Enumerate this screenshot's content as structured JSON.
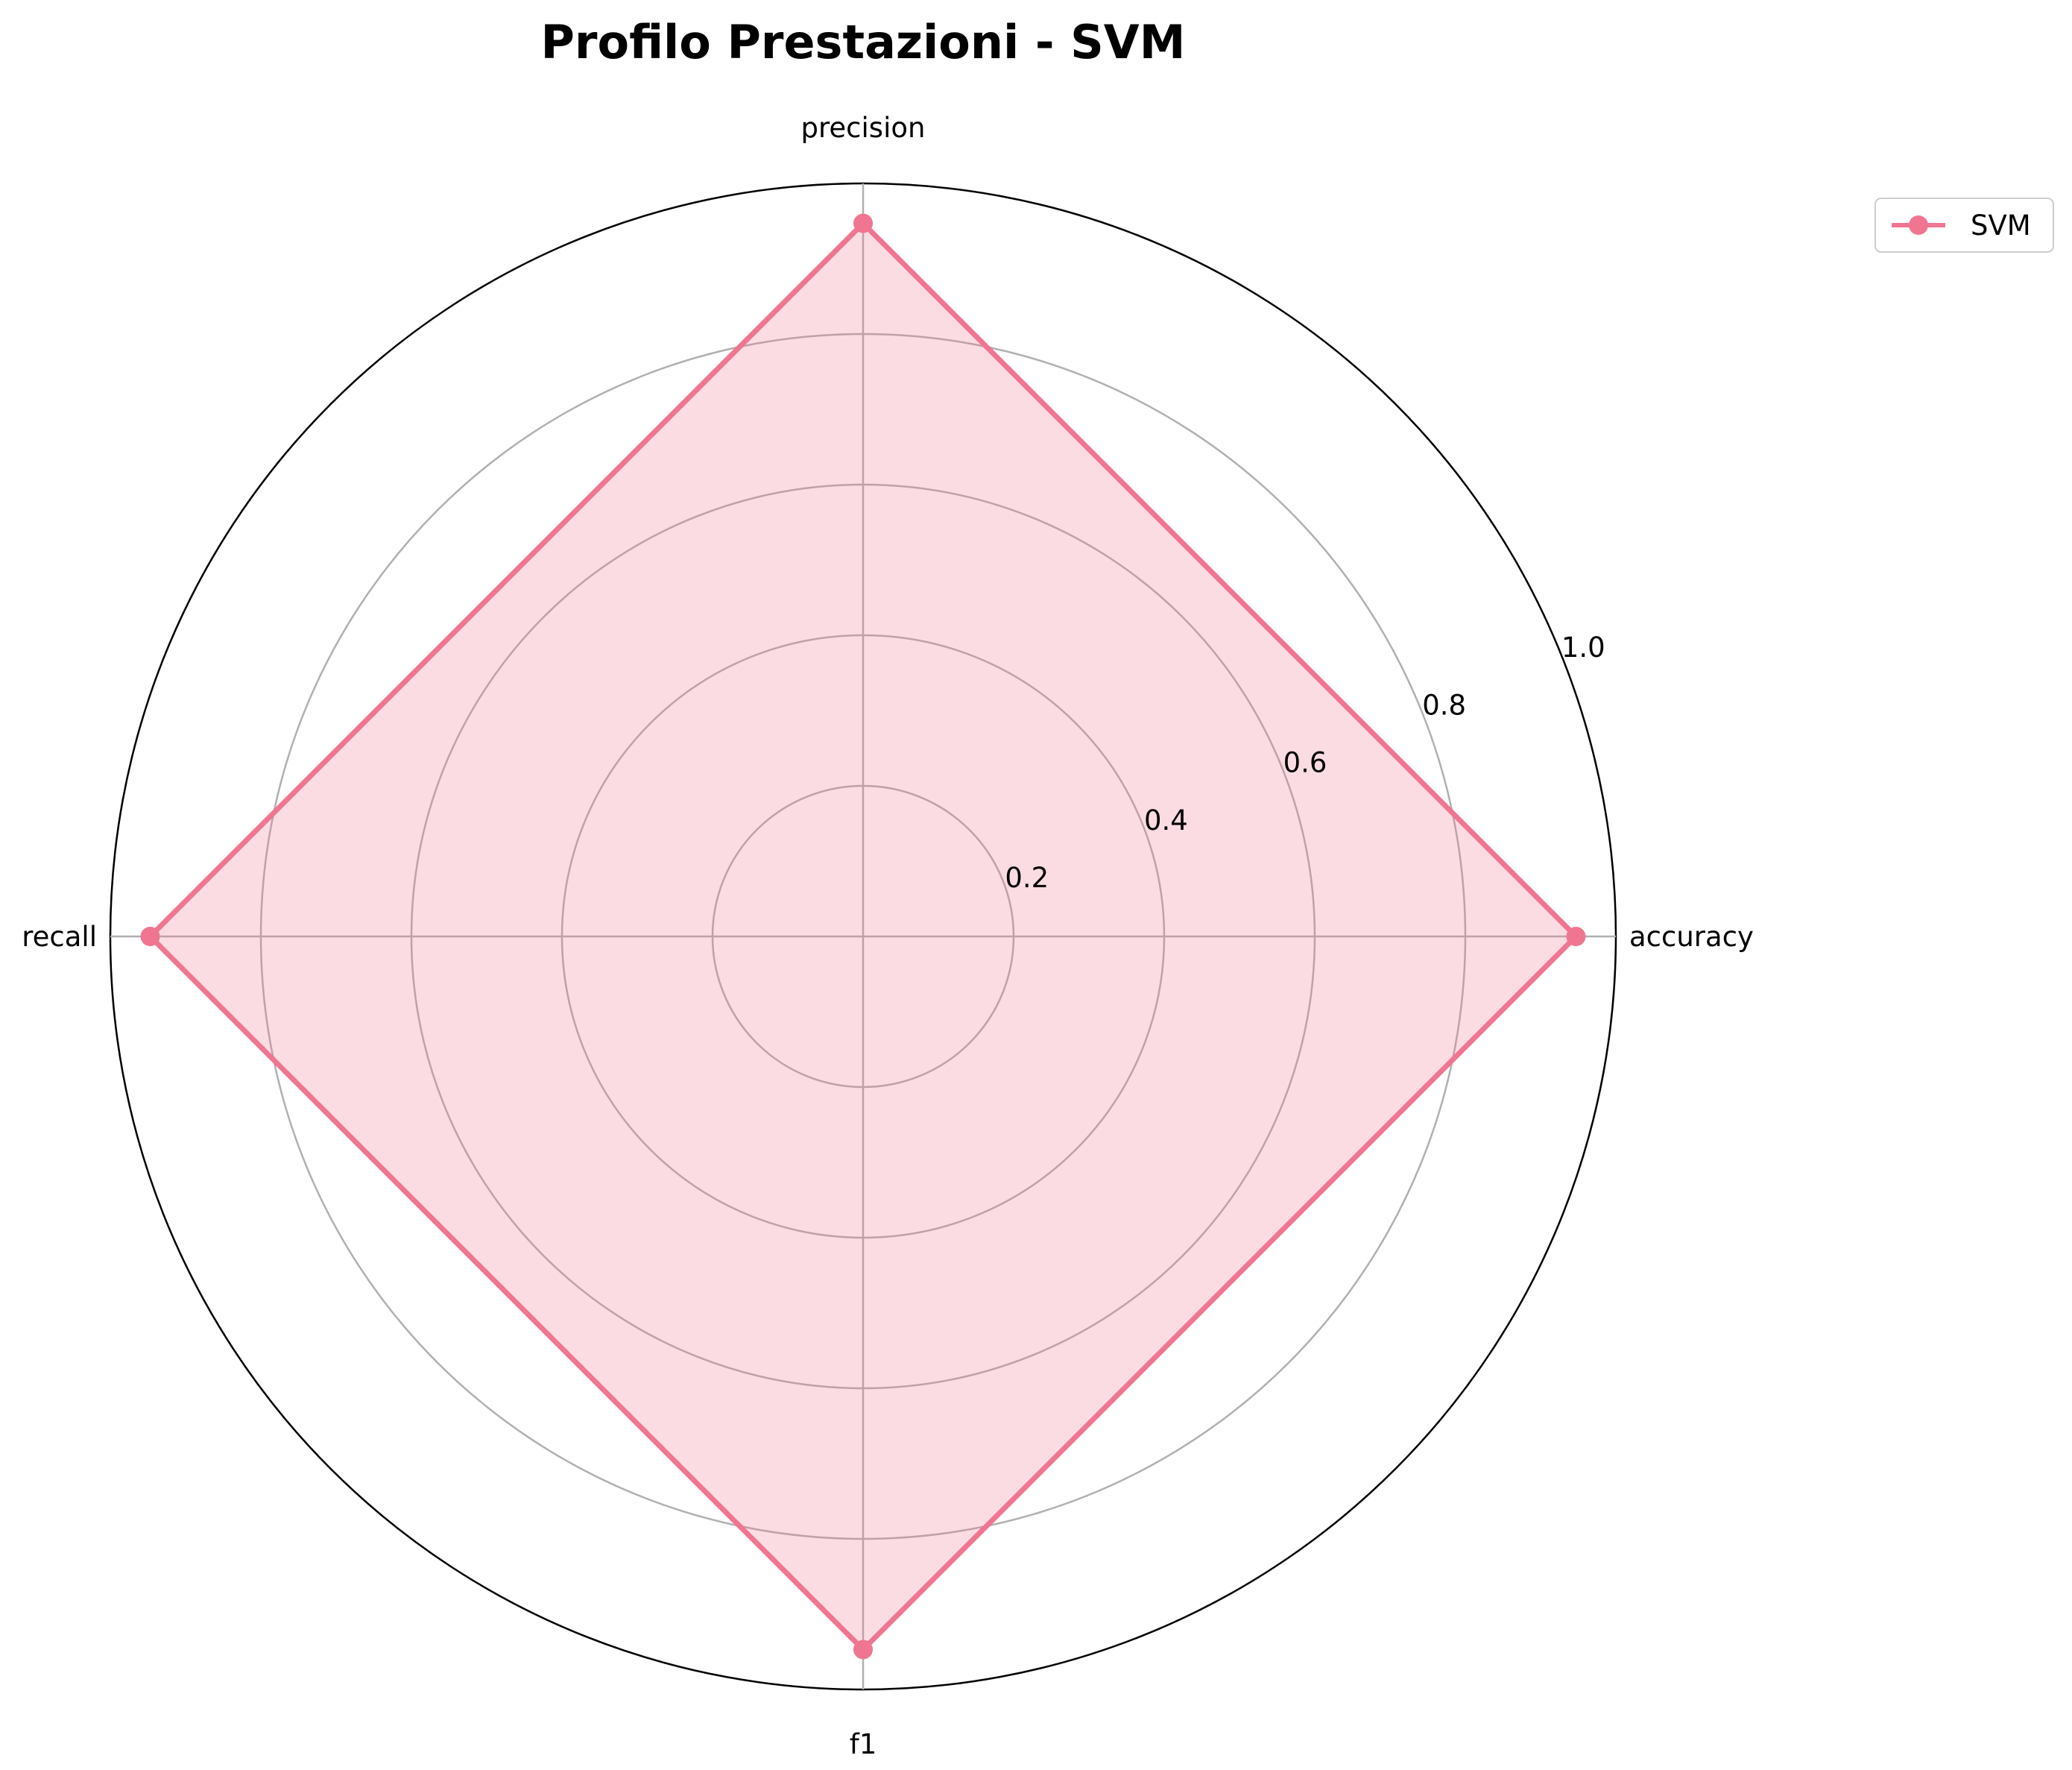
{
  "chart_data": {
    "type": "radar",
    "title": "Profilo Prestazioni - SVM",
    "axes": [
      "accuracy",
      "precision",
      "recall",
      "f1"
    ],
    "rlim": [
      0,
      1.0
    ],
    "rticks": [
      0.2,
      0.4,
      0.6,
      0.8,
      1.0
    ],
    "rtick_labels": [
      "0.2",
      "0.4",
      "0.6",
      "0.8",
      "1.0"
    ],
    "grid": true,
    "legend_position": "top-right, outside",
    "series": [
      {
        "name": "SVM",
        "values": [
          0.947,
          0.947,
          0.947,
          0.947
        ],
        "color": "#f07590",
        "fill_color": "#f07590",
        "fill_alpha": 0.25
      }
    ]
  }
}
